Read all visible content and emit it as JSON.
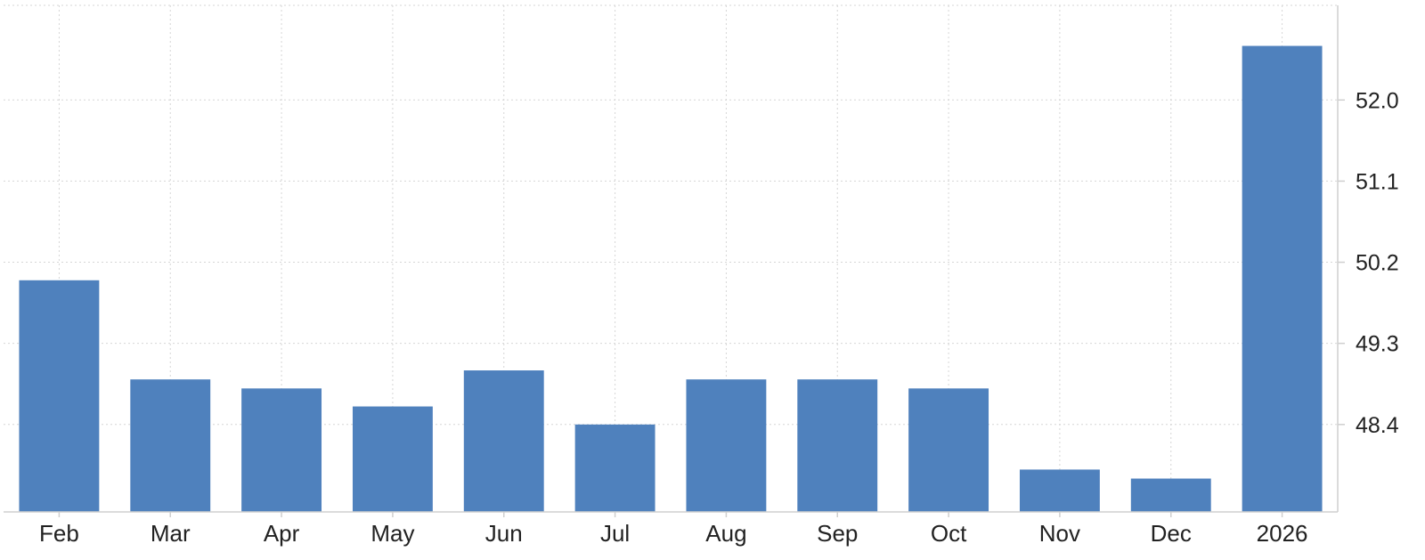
{
  "chart_data": {
    "type": "bar",
    "categories": [
      "Feb",
      "Mar",
      "Apr",
      "May",
      "Jun",
      "Jul",
      "Aug",
      "Sep",
      "Oct",
      "Nov",
      "Dec",
      "2026"
    ],
    "values": [
      50.0,
      48.9,
      48.8,
      48.6,
      49.0,
      48.4,
      48.9,
      48.9,
      48.8,
      47.9,
      47.8,
      52.6
    ],
    "y_ticks": [
      "48.4",
      "49.3",
      "50.2",
      "51.1",
      "52.0"
    ],
    "ylim": [
      47.43,
      53.05
    ],
    "grid": true,
    "y_axis_side": "right",
    "bar_color": "#4f81bd",
    "title": "",
    "xlabel": "",
    "ylabel": ""
  }
}
